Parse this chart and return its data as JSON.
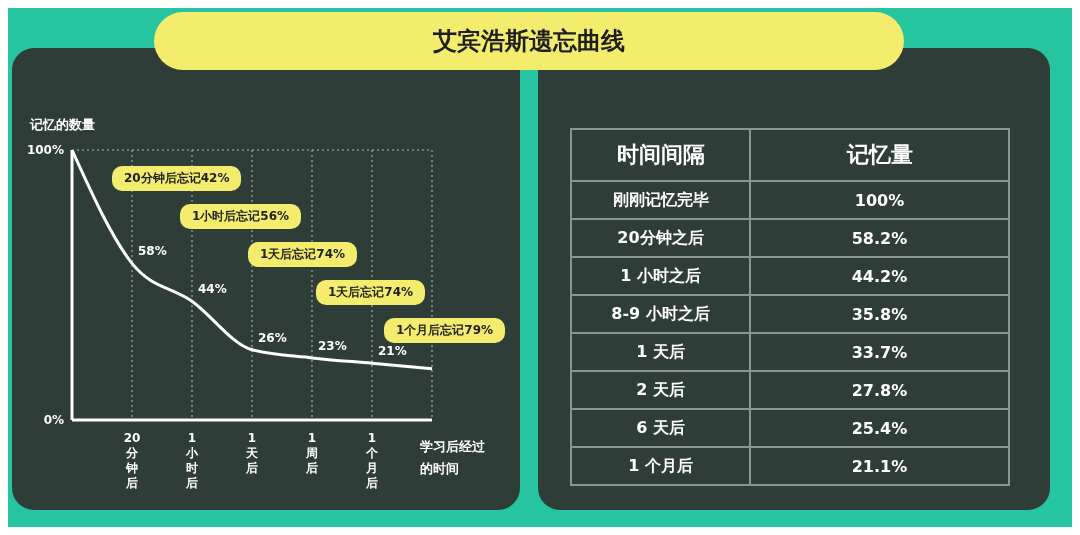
{
  "chart_data": [
    {
      "type": "line",
      "title": "艾宾浩斯遗忘曲线",
      "ylabel": "记忆的数量",
      "xlabel": "学习后经过的时间",
      "categories": [
        null,
        "20分钟后",
        "1小时后",
        "1天后",
        "1周后",
        "1个月后",
        null
      ],
      "series": [
        {
          "color": "#ffffff",
          "values": [
            100,
            58,
            44,
            26,
            23,
            21,
            19
          ],
          "value_labels": [
            null,
            "58%",
            "44%",
            "26%",
            "23%",
            "21%",
            null
          ]
        }
      ],
      "ylim": [
        0,
        100
      ],
      "yticks": [
        {
          "value": 0,
          "label": "0%"
        },
        {
          "value": 100,
          "label": "100%"
        }
      ],
      "grid": true,
      "marker": "none",
      "annotations": [
        "20分钟后忘记42%",
        "1小时后忘记56%",
        "1天后忘记74%",
        "1天后忘记74%",
        "1个月后忘记79%"
      ]
    },
    {
      "type": "other",
      "xlabel": "时间间隔",
      "ylabel": "记忆量",
      "categories": [
        "刚刚记忆完毕",
        "20分钟之后",
        "1 小时之后",
        "8-9 小时之后",
        "1 天后",
        "2 天后",
        "6 天后",
        "1 个月后"
      ],
      "value_labels": [
        "100%",
        "58.2%",
        "44.2%",
        "35.8%",
        "33.7%",
        "27.8%",
        "25.4%",
        "21.1%"
      ]
    }
  ]
}
